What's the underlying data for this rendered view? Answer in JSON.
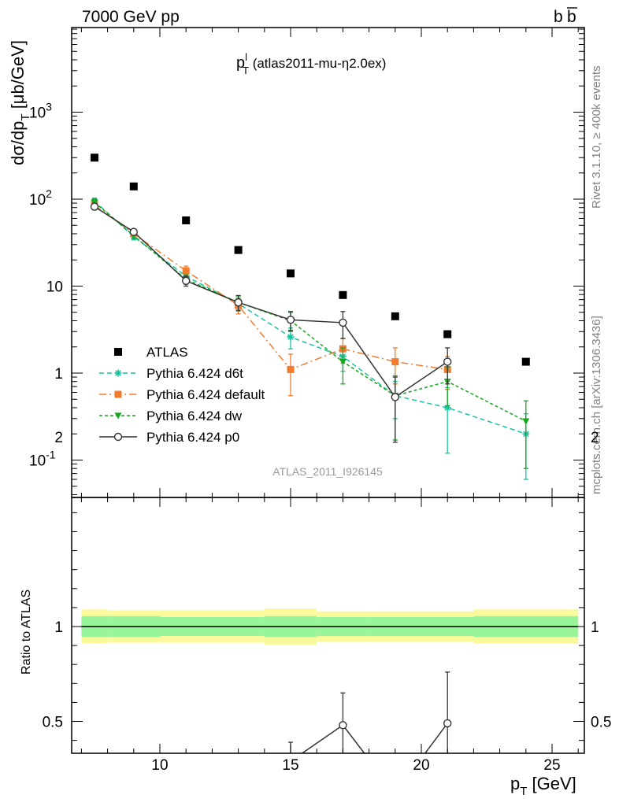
{
  "header": {
    "left": "7000 GeV pp",
    "right_main": "b",
    "right_bar": "b"
  },
  "side": {
    "rivet": "Rivet 3.1.10, ≥ 400k events",
    "mcplots": "mcplots.cern.ch [arXiv:1306.3436]"
  },
  "chart_data": {
    "type": "scatter",
    "title": {
      "main": "p",
      "sup": "l",
      "sub": "T",
      "rest": " (atlas2011-mu-η2.0ex)"
    },
    "analysis_label": "ATLAS_2011_I926145",
    "ylabel": {
      "main": "dσ/dp",
      "sub": "T",
      "unit": " [μb/GeV]"
    },
    "xlabel": {
      "main": "p",
      "sub": "T",
      "unit": " [GeV]"
    },
    "ratio_ylabel": "Ratio to ATLAS",
    "xlim": [
      6.8,
      26.5
    ],
    "ylim_log": [
      0.035,
      9000
    ],
    "ratio_ylim": [
      0.34,
      2.3
    ],
    "x_ticks": [
      "10",
      "15",
      "20",
      "25"
    ],
    "y_ticks": [
      "10^-1",
      "1",
      "10",
      "10^2",
      "10^3"
    ],
    "ratio_ticks": [
      "0.5",
      "1",
      "2"
    ],
    "scale": "log",
    "legend_position": "middle-left",
    "colors": {
      "atlas": "#000000",
      "d6t": "#17c3a0",
      "default": "#f37b2e",
      "dw": "#14a81f",
      "p0": "#333333",
      "band_inner": "#99f599",
      "band_outer": "#fafa9c"
    },
    "data_series": {
      "name": "ATLAS",
      "x": [
        7.5,
        9,
        11,
        13,
        15,
        17,
        19,
        21,
        24
      ],
      "y": [
        300,
        140,
        57,
        26,
        14,
        7.9,
        4.5,
        2.8,
        1.35
      ]
    },
    "series": [
      {
        "key": "d6t",
        "name": "Pythia 6.424 d6t",
        "style": "dashed",
        "marker": "star",
        "x": [
          7.5,
          9,
          11,
          13,
          15,
          17,
          19,
          21,
          24
        ],
        "y": [
          95,
          37,
          13,
          6.3,
          2.6,
          1.55,
          0.55,
          0.4,
          0.2
        ],
        "err": [
          8,
          3,
          1.5,
          1.0,
          0.7,
          0.5,
          0.25,
          0.28,
          0.14
        ]
      },
      {
        "key": "default",
        "name": "Pythia 6.424 default",
        "style": "dashdot",
        "marker": "square",
        "x": [
          7.5,
          9,
          11,
          13,
          15,
          17,
          19,
          21
        ],
        "y": [
          85,
          40,
          15,
          6.0,
          1.1,
          1.9,
          1.35,
          1.1
        ],
        "err": [
          7,
          3.5,
          2,
          1.2,
          0.55,
          0.6,
          0.6,
          0.45
        ]
      },
      {
        "key": "dw",
        "name": "Pythia 6.424 dw",
        "style": "dotted",
        "marker": "triangle",
        "x": [
          7.5,
          9,
          11,
          13,
          15,
          17,
          19,
          21,
          24
        ],
        "y": [
          92,
          38,
          12,
          6.5,
          4.0,
          1.35,
          0.55,
          0.8,
          0.28
        ],
        "err": [
          8,
          3,
          1.5,
          1.2,
          1.0,
          0.6,
          0.38,
          0.38,
          0.2
        ]
      },
      {
        "key": "p0",
        "name": "Pythia 6.424 p0",
        "style": "solid",
        "marker": "circle",
        "x": [
          7.5,
          9,
          11,
          13,
          15,
          17,
          19,
          21
        ],
        "y": [
          82,
          42,
          11.5,
          6.5,
          4.1,
          3.8,
          0.53,
          1.35
        ],
        "err": [
          7,
          3,
          1.5,
          1.3,
          1.0,
          1.3,
          0.37,
          0.6
        ]
      }
    ],
    "ratio": {
      "bins": [
        [
          7,
          8
        ],
        [
          8,
          10
        ],
        [
          10,
          12
        ],
        [
          12,
          14
        ],
        [
          14,
          16
        ],
        [
          16,
          18
        ],
        [
          18,
          20
        ],
        [
          20,
          22
        ],
        [
          22,
          26
        ]
      ],
      "inner_err": [
        0.055,
        0.055,
        0.05,
        0.05,
        0.055,
        0.05,
        0.05,
        0.05,
        0.055
      ],
      "outer_err": [
        0.09,
        0.085,
        0.085,
        0.085,
        0.095,
        0.08,
        0.08,
        0.08,
        0.09
      ],
      "p0": {
        "x": [
          15,
          17,
          19,
          21
        ],
        "y": [
          0.29,
          0.48,
          0.12,
          0.49
        ],
        "err": [
          0.1,
          0.17,
          0.08,
          0.27
        ]
      }
    }
  }
}
